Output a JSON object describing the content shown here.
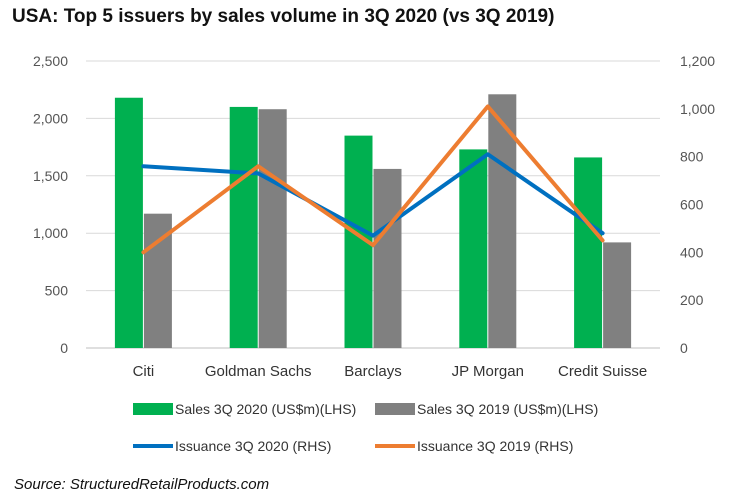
{
  "title": "USA: Top 5 issuers by sales volume in 3Q 2020 (vs 3Q 2019)",
  "source": "Source: StructuredRetailProducts.com",
  "chart_data": {
    "type": "bar",
    "categories": [
      "Citi",
      "Goldman Sachs",
      "Barclays",
      "JP Morgan",
      "Credit Suisse"
    ],
    "series": [
      {
        "name": "Sales 3Q 2020 (US$m)(LHS)",
        "kind": "bar",
        "axis": "left",
        "color": "#00b050",
        "values": [
          2180,
          2100,
          1850,
          1730,
          1660
        ]
      },
      {
        "name": "Sales 3Q 2019 (US$m)(LHS)",
        "kind": "bar",
        "axis": "left",
        "color": "#808080",
        "values": [
          1170,
          2080,
          1560,
          2210,
          920
        ]
      },
      {
        "name": "Issuance 3Q 2020 (RHS)",
        "kind": "line",
        "axis": "right",
        "color": "#0070c0",
        "values": [
          760,
          730,
          470,
          810,
          480
        ]
      },
      {
        "name": "Issuance 3Q 2019 (RHS)",
        "kind": "line",
        "axis": "right",
        "color": "#ed7d31",
        "values": [
          400,
          760,
          430,
          1010,
          450
        ]
      }
    ],
    "y_left": {
      "min": 0,
      "max": 2500,
      "step": 500,
      "ticks": [
        "0",
        "500",
        "1,000",
        "1,500",
        "2,000",
        "2,500"
      ]
    },
    "y_right": {
      "min": 0,
      "max": 1200,
      "step": 200,
      "ticks": [
        "0",
        "200",
        "400",
        "600",
        "800",
        "1,000",
        "1,200"
      ]
    },
    "grid": true,
    "legend_position": "bottom"
  }
}
